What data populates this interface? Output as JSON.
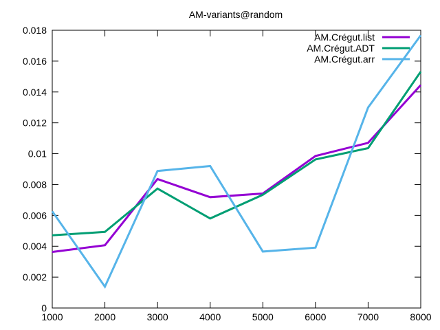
{
  "chart_data": {
    "type": "line",
    "title": "AM-variants@random",
    "xlabel": "",
    "ylabel": "",
    "x": [
      1000,
      2000,
      3000,
      4000,
      5000,
      6000,
      7000,
      8000
    ],
    "xlim": [
      1000,
      8000
    ],
    "ylim": [
      0,
      0.018
    ],
    "xticks": [
      "1000",
      "2000",
      "3000",
      "4000",
      "5000",
      "6000",
      "7000",
      "8000"
    ],
    "yticks": [
      {
        "v": 0,
        "label": "0"
      },
      {
        "v": 0.002,
        "label": "0.002"
      },
      {
        "v": 0.004,
        "label": "0.004"
      },
      {
        "v": 0.006,
        "label": "0.006"
      },
      {
        "v": 0.008,
        "label": "0.008"
      },
      {
        "v": 0.01,
        "label": "0.01"
      },
      {
        "v": 0.012,
        "label": "0.012"
      },
      {
        "v": 0.014,
        "label": "0.014"
      },
      {
        "v": 0.016,
        "label": "0.016"
      },
      {
        "v": 0.018,
        "label": "0.018"
      }
    ],
    "grid": false,
    "legend_position": "top-right",
    "series": [
      {
        "name": "AM.Crégut.list",
        "color": "#9400d3",
        "values": [
          0.00363,
          0.00407,
          0.00836,
          0.00718,
          0.00742,
          0.00985,
          0.0107,
          0.01445
        ]
      },
      {
        "name": "AM.Crégut.ADT",
        "color": "#009e73",
        "values": [
          0.00471,
          0.00493,
          0.00774,
          0.0058,
          0.00734,
          0.00963,
          0.01036,
          0.01532
        ]
      },
      {
        "name": "AM.Crégut.arr",
        "color": "#56b4e9",
        "values": [
          0.00627,
          0.00138,
          0.00888,
          0.0092,
          0.00366,
          0.00391,
          0.01299,
          0.01767
        ]
      }
    ]
  }
}
